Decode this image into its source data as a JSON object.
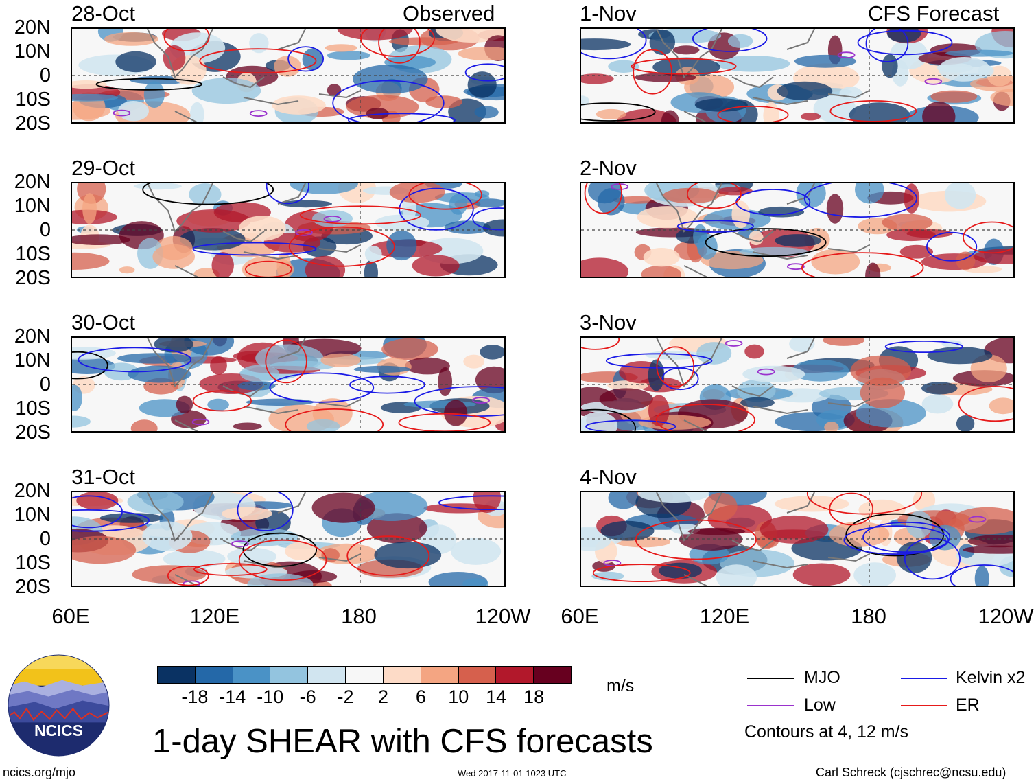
{
  "observed_header": "Observed",
  "forecast_header": "CFS Forecast",
  "observed_panels": [
    {
      "date": "28-Oct"
    },
    {
      "date": "29-Oct"
    },
    {
      "date": "30-Oct"
    },
    {
      "date": "31-Oct"
    }
  ],
  "forecast_panels": [
    {
      "date": "1-Nov"
    },
    {
      "date": "2-Nov"
    },
    {
      "date": "3-Nov"
    },
    {
      "date": "4-Nov"
    }
  ],
  "lat_labels": [
    "20N",
    "10N",
    "0",
    "10S",
    "20S"
  ],
  "lon_labels": [
    "60E",
    "120E",
    "180",
    "120W"
  ],
  "colorbar": {
    "tick_labels": [
      "-18",
      "-14",
      "-10",
      "-6",
      "-2",
      "2",
      "6",
      "10",
      "14",
      "18"
    ],
    "colors": [
      "#0a3263",
      "#2468a8",
      "#4a92c6",
      "#93c4df",
      "#d1e5f0",
      "#f7f7f7",
      "#fddbc7",
      "#f4a582",
      "#d6604d",
      "#b2182b",
      "#67001f"
    ],
    "units": "m/s"
  },
  "legend": {
    "items": [
      {
        "label": "MJO",
        "color": "#000000"
      },
      {
        "label": "Kelvin x2",
        "color": "#1a1ae6"
      },
      {
        "label": "Low",
        "color": "#9a32cd"
      },
      {
        "label": "ER",
        "color": "#e61a1a"
      }
    ],
    "note": "Contours at 4, 12 m/s"
  },
  "title": "1-day SHEAR with CFS forecasts",
  "footer": {
    "left": "ncics.org/mjo",
    "center": "Wed 2017-11-01 1023 UTC",
    "right": "Carl Schreck (cjschrec@ncsu.edu)"
  },
  "logo_text": "NCICS",
  "chart_data": {
    "type": "heatmap",
    "title": "1-day SHEAR with CFS forecasts",
    "variable": "wind shear anomaly",
    "units": "m/s",
    "color_levels": [
      -18,
      -14,
      -10,
      -6,
      -2,
      2,
      6,
      10,
      14,
      18
    ],
    "lat_range": [
      -20,
      20
    ],
    "lon_range": [
      "60E",
      "120W"
    ],
    "contour_levels_ms": [
      4,
      12
    ],
    "contour_filters": [
      "MJO",
      "Kelvin x2",
      "Low",
      "ER"
    ],
    "panels": [
      {
        "date": "28-Oct",
        "kind": "Observed"
      },
      {
        "date": "29-Oct",
        "kind": "Observed"
      },
      {
        "date": "30-Oct",
        "kind": "Observed"
      },
      {
        "date": "31-Oct",
        "kind": "Observed"
      },
      {
        "date": "1-Nov",
        "kind": "CFS Forecast"
      },
      {
        "date": "2-Nov",
        "kind": "CFS Forecast"
      },
      {
        "date": "3-Nov",
        "kind": "CFS Forecast"
      },
      {
        "date": "4-Nov",
        "kind": "CFS Forecast"
      }
    ]
  }
}
